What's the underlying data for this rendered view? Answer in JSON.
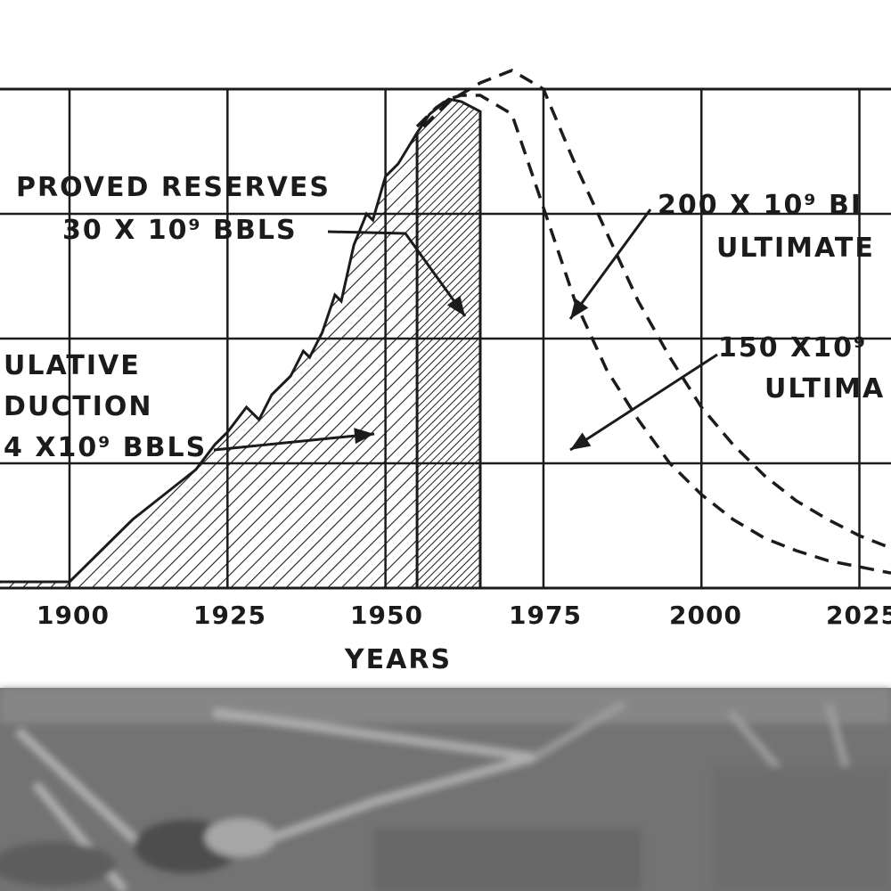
{
  "chart_data": {
    "type": "area",
    "xlabel": "YEARS",
    "x_ticks": [
      "1900",
      "1925",
      "1950",
      "1975",
      "2000",
      "2025"
    ],
    "x_tick_values": [
      1900,
      1925,
      1950,
      1975,
      2000,
      2025
    ],
    "xlim": [
      1889,
      2030
    ],
    "ylim": [
      0,
      4
    ],
    "grid": true,
    "series": [
      {
        "style": "hatched-area",
        "x": [
          1889,
          1900,
          1905,
          1910,
          1915,
          1920,
          1923,
          1925,
          1928,
          1930,
          1932,
          1935,
          1937,
          1938,
          1940,
          1942,
          1943,
          1945,
          1947,
          1948,
          1950,
          1952,
          1955,
          1957,
          1960,
          1962,
          1965
        ],
        "values": [
          0.05,
          0.05,
          0.3,
          0.55,
          0.75,
          0.95,
          1.15,
          1.25,
          1.45,
          1.35,
          1.55,
          1.7,
          1.9,
          1.85,
          2.05,
          2.35,
          2.3,
          2.75,
          3.0,
          2.95,
          3.3,
          3.4,
          3.65,
          3.8,
          3.92,
          3.9,
          3.82
        ]
      },
      {
        "style": "dashed",
        "x": [
          1955,
          1958,
          1960,
          1962,
          1965,
          1970,
          1975,
          1980,
          1985,
          1990,
          1995,
          2000,
          2005,
          2010,
          2015,
          2020,
          2025,
          2030
        ],
        "values": [
          3.7,
          3.85,
          3.92,
          3.95,
          3.95,
          3.8,
          3.05,
          2.3,
          1.75,
          1.35,
          1.0,
          0.75,
          0.55,
          0.4,
          0.3,
          0.22,
          0.17,
          0.12
        ]
      },
      {
        "style": "dashed",
        "x": [
          1956,
          1960,
          1965,
          1970,
          1975,
          1980,
          1985,
          1990,
          1995,
          2000,
          2005,
          2010,
          2015,
          2020,
          2025,
          2030
        ],
        "values": [
          3.7,
          3.9,
          4.05,
          4.15,
          4.0,
          3.4,
          2.85,
          2.3,
          1.85,
          1.45,
          1.15,
          0.9,
          0.7,
          0.55,
          0.42,
          0.32
        ]
      }
    ],
    "regions": [
      {
        "style": "light-hatch",
        "from": 1889,
        "to": 1955
      },
      {
        "style": "dense-hatch",
        "from": 1955,
        "to": 1965
      }
    ],
    "annotations": [
      {
        "lines": [
          "PROVED RESERVES",
          "30 X 10⁹ BBLS"
        ]
      },
      {
        "lines": [
          "ULATIVE",
          "DUCTION",
          "4 X10⁹ BBLS"
        ]
      },
      {
        "lines": [
          "200 X 10⁹ BI",
          "ULTIMATE"
        ]
      },
      {
        "lines": [
          "150 X10⁹",
          "ULTIMA"
        ]
      }
    ]
  },
  "colors": {
    "ink": "#1b1b1b",
    "paper": "#ffffff",
    "photo": "#747474"
  }
}
